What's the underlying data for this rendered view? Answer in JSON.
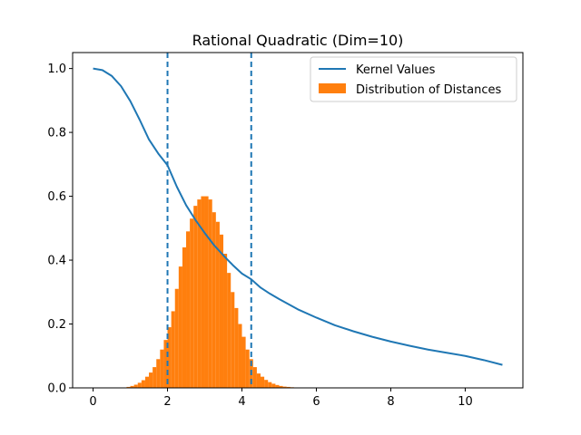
{
  "chart_data": {
    "type": "line",
    "title": "Rational Quadratic (Dim=10)",
    "xlabel": "",
    "ylabel": "",
    "xlim": [
      -0.55,
      11.55
    ],
    "ylim": [
      0.0,
      1.05
    ],
    "xticks": [
      0,
      2,
      4,
      6,
      8,
      10
    ],
    "yticks": [
      0.0,
      0.2,
      0.4,
      0.6,
      0.8,
      1.0
    ],
    "xtick_labels": [
      "0",
      "2",
      "4",
      "6",
      "8",
      "10"
    ],
    "ytick_labels": [
      "0.0",
      "0.2",
      "0.4",
      "0.6",
      "0.8",
      "1.0"
    ],
    "grid": false,
    "legend": {
      "placement": "top-right",
      "entries": [
        {
          "label": "Kernel Values",
          "kind": "line",
          "color": "#1f77b4"
        },
        {
          "label": "Distribution of Distances",
          "kind": "patch",
          "color": "#ff7f0e"
        }
      ]
    },
    "series": [
      {
        "name": "Kernel Values",
        "type": "line",
        "color": "#1f77b4",
        "x": [
          0,
          0.25,
          0.5,
          0.75,
          1.0,
          1.25,
          1.5,
          1.75,
          2.0,
          2.25,
          2.5,
          2.75,
          3.0,
          3.25,
          3.5,
          3.75,
          4.0,
          4.25,
          4.5,
          4.75,
          5.0,
          5.5,
          6.0,
          6.5,
          7.0,
          7.5,
          8.0,
          8.5,
          9.0,
          9.5,
          10.0,
          10.5,
          11.0
        ],
        "y": [
          1.0,
          0.995,
          0.977,
          0.945,
          0.898,
          0.84,
          0.778,
          0.734,
          0.697,
          0.63,
          0.572,
          0.526,
          0.485,
          0.447,
          0.415,
          0.385,
          0.358,
          0.34,
          0.314,
          0.295,
          0.278,
          0.246,
          0.22,
          0.196,
          0.177,
          0.16,
          0.145,
          0.132,
          0.12,
          0.11,
          0.1,
          0.087,
          0.072
        ]
      },
      {
        "name": "Distribution of Distances",
        "type": "histogram",
        "color": "#ff7f0e",
        "bin_width": 0.1,
        "x": [
          0.9,
          1.0,
          1.1,
          1.2,
          1.3,
          1.4,
          1.5,
          1.6,
          1.7,
          1.8,
          1.9,
          2.0,
          2.1,
          2.2,
          2.3,
          2.4,
          2.5,
          2.6,
          2.7,
          2.8,
          2.9,
          3.0,
          3.1,
          3.2,
          3.3,
          3.4,
          3.5,
          3.6,
          3.7,
          3.8,
          3.9,
          4.0,
          4.1,
          4.2,
          4.3,
          4.4,
          4.5,
          4.6,
          4.7,
          4.8,
          4.9,
          5.0,
          5.1,
          5.2,
          5.3,
          5.4,
          5.5
        ],
        "values": [
          0.003,
          0.006,
          0.01,
          0.016,
          0.024,
          0.035,
          0.048,
          0.065,
          0.09,
          0.12,
          0.15,
          0.19,
          0.24,
          0.31,
          0.38,
          0.44,
          0.49,
          0.53,
          0.57,
          0.59,
          0.6,
          0.6,
          0.59,
          0.55,
          0.52,
          0.48,
          0.42,
          0.36,
          0.3,
          0.25,
          0.2,
          0.16,
          0.12,
          0.09,
          0.065,
          0.045,
          0.035,
          0.025,
          0.018,
          0.013,
          0.009,
          0.006,
          0.004,
          0.003,
          0.002,
          0.001,
          0.001
        ]
      }
    ],
    "vlines": [
      {
        "x": 2.0,
        "style": "dashed",
        "color": "#1f77b4"
      },
      {
        "x": 4.25,
        "style": "dashed",
        "color": "#1f77b4"
      }
    ]
  }
}
